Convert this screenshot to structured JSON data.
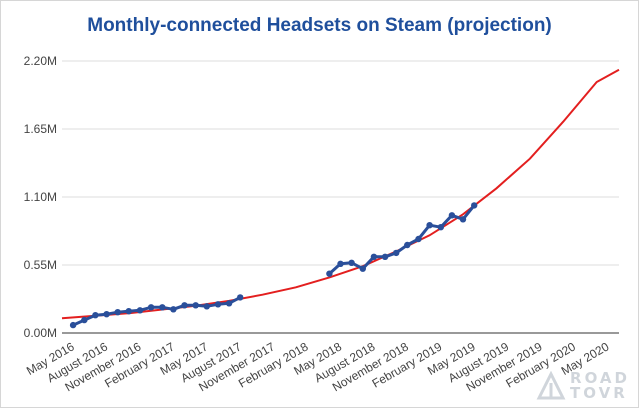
{
  "chart_data": {
    "type": "line",
    "title": "Monthly-connected Headsets on Steam (projection)",
    "xlabel": "",
    "ylabel": "",
    "x_ticks": [
      "May 2016",
      "August 2016",
      "November 2016",
      "February 2017",
      "May 2017",
      "August 2017",
      "November 2017",
      "February 2018",
      "May 2018",
      "August 2018",
      "November 2018",
      "February 2019",
      "May 2019",
      "August 2019",
      "November 2019",
      "February 2020",
      "May 2020"
    ],
    "y_ticks": [
      {
        "value": 0,
        "label": "0.00M"
      },
      {
        "value": 0.55,
        "label": "0.55M"
      },
      {
        "value": 1.1,
        "label": "1.10M"
      },
      {
        "value": 1.65,
        "label": "1.65M"
      },
      {
        "value": 2.2,
        "label": "2.20M"
      }
    ],
    "ylim": [
      0,
      2.2
    ],
    "grid": true,
    "series": [
      {
        "type": "line-markers",
        "color": "#2a4f9a",
        "x": [
          "May 2016",
          "Jun 2016",
          "Jul 2016",
          "Aug 2016",
          "Sep 2016",
          "Oct 2016",
          "Nov 2016",
          "Dec 2016",
          "Jan 2017",
          "Feb 2017",
          "Mar 2017",
          "Apr 2017",
          "May 2017",
          "Jun 2017",
          "Jul 2017",
          "Aug 2017",
          "Apr 2018",
          "May 2018",
          "Jun 2018",
          "Jul 2018",
          "Aug 2018",
          "Sep 2018",
          "Oct 2018",
          "Nov 2018",
          "Dec 2018",
          "Jan 2019",
          "Feb 2019",
          "Mar 2019",
          "Apr 2019",
          "May 2019",
          "Jun 2019"
        ],
        "values": [
          0.064,
          0.104,
          0.144,
          0.152,
          0.168,
          0.176,
          0.184,
          0.208,
          0.208,
          0.192,
          0.224,
          0.224,
          0.216,
          0.232,
          0.24,
          0.288,
          0.48,
          0.56,
          0.568,
          0.52,
          0.616,
          0.616,
          0.648,
          0.712,
          0.76,
          0.872,
          0.856,
          0.952,
          0.92,
          1.032,
          null
        ]
      },
      {
        "type": "trend",
        "color": "#e31f1f",
        "x": [
          "Apr 2016",
          "Jul 2016",
          "Oct 2016",
          "Jan 2017",
          "Apr 2017",
          "Jul 2017",
          "Oct 2017",
          "Jan 2018",
          "Apr 2018",
          "Jul 2018",
          "Oct 2018",
          "Jan 2019",
          "Apr 2019",
          "Jul 2019",
          "Oct 2019",
          "Jan 2020",
          "Apr 2020",
          "Jun 2020"
        ],
        "values": [
          0.12,
          0.14,
          0.16,
          0.19,
          0.22,
          0.26,
          0.31,
          0.37,
          0.45,
          0.54,
          0.66,
          0.79,
          0.96,
          1.17,
          1.41,
          1.71,
          2.03,
          2.13
        ]
      }
    ]
  },
  "watermark": {
    "line1": "ROAD",
    "line2": "TOVR"
  }
}
